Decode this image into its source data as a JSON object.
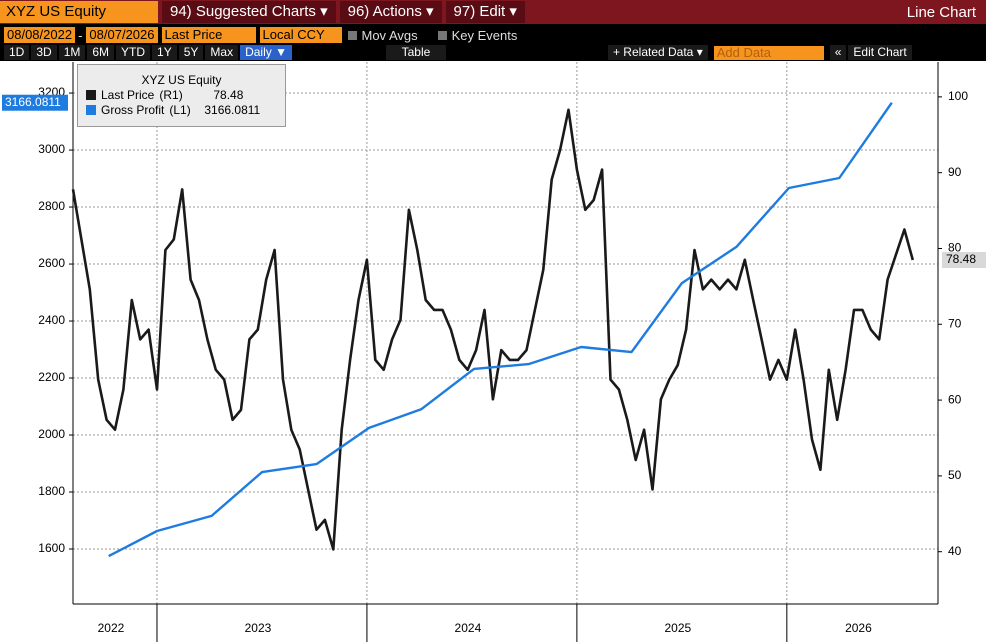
{
  "toolbar": {
    "security": "XYZ US Equity",
    "menus": [
      "94) Suggested Charts ▾",
      "96) Actions ▾",
      "97) Edit ▾"
    ],
    "view": "Line Chart",
    "start_date": "08/08/2022",
    "date_sep": "-",
    "end_date": "08/07/2026",
    "field": "Last Price",
    "currency": "Local CCY",
    "mov_avgs": "Mov Avgs",
    "key_events": "Key Events",
    "periods": [
      "1D",
      "3D",
      "1M",
      "6M",
      "YTD",
      "1Y",
      "5Y",
      "Max"
    ],
    "frequency": "Daily ▼",
    "table": "Table",
    "related": "+ Related Data ▾",
    "add_data": "Add Data",
    "collapse": "«",
    "edit_chart": "Edit Chart"
  },
  "chart_data": {
    "type": "line",
    "legend_title": "XYZ US Equity",
    "xlim": [
      2022.6,
      2026.72
    ],
    "xticks": [
      2022,
      2023,
      2024,
      2025,
      2026
    ],
    "ylim": [
      1407,
      3309
    ],
    "yticks": [
      1600,
      1800,
      2000,
      2200,
      2400,
      2600,
      2800,
      3000,
      3200
    ],
    "y2lim": [
      33.1,
      104.6
    ],
    "y2ticks": [
      40,
      50,
      60,
      70,
      80,
      90,
      100
    ],
    "grid": true,
    "series": [
      {
        "name": "Last Price",
        "tag": "(R1)",
        "color": "#1a1a1a",
        "axis": "y2",
        "x": [
          2022.6,
          2022.64,
          2022.68,
          2022.72,
          2022.76,
          2022.8,
          2022.84,
          2022.88,
          2022.92,
          2022.96,
          2023.0,
          2023.04,
          2023.08,
          2023.12,
          2023.16,
          2023.2,
          2023.24,
          2023.28,
          2023.32,
          2023.36,
          2023.4,
          2023.44,
          2023.48,
          2023.52,
          2023.56,
          2023.6,
          2023.64,
          2023.68,
          2023.72,
          2023.76,
          2023.8,
          2023.84,
          2023.88,
          2023.92,
          2023.96,
          2024.0,
          2024.04,
          2024.08,
          2024.12,
          2024.16,
          2024.2,
          2024.24,
          2024.28,
          2024.32,
          2024.36,
          2024.4,
          2024.44,
          2024.48,
          2024.52,
          2024.56,
          2024.6,
          2024.64,
          2024.68,
          2024.72,
          2024.76,
          2024.8,
          2024.84,
          2024.88,
          2024.92,
          2024.96,
          2025.0,
          2025.04,
          2025.08,
          2025.12,
          2025.16,
          2025.2,
          2025.24,
          2025.28,
          2025.32,
          2025.36,
          2025.4,
          2025.44,
          2025.48,
          2025.52,
          2025.56,
          2025.6,
          2025.64,
          2025.68,
          2025.72,
          2025.76,
          2025.8,
          2025.84,
          2025.88,
          2025.92,
          2025.96,
          2026.0,
          2026.04,
          2026.08,
          2026.12,
          2026.16,
          2026.2,
          2026.24,
          2026.28,
          2026.32,
          2026.36,
          2026.4,
          2026.44,
          2026.48,
          2026.52,
          2026.56,
          2026.6
        ],
        "values": [
          87.8,
          81.2,
          74.6,
          62.7,
          57.4,
          56.1,
          61.4,
          73.2,
          68.0,
          69.3,
          61.4,
          79.8,
          81.2,
          87.8,
          75.9,
          73.2,
          68.0,
          64.0,
          62.7,
          57.4,
          58.7,
          68.0,
          69.3,
          75.9,
          79.8,
          62.7,
          56.1,
          53.5,
          48.2,
          42.9,
          44.2,
          40.3,
          56.1,
          65.3,
          73.2,
          78.5,
          65.3,
          64.0,
          68.0,
          70.6,
          85.1,
          79.8,
          73.2,
          71.9,
          71.9,
          69.3,
          65.3,
          64.0,
          66.6,
          71.9,
          60.1,
          66.6,
          65.3,
          65.3,
          66.6,
          71.9,
          77.2,
          89.1,
          93.0,
          98.3,
          90.4,
          85.1,
          86.4,
          90.4,
          62.7,
          61.4,
          57.4,
          52.1,
          56.1,
          48.2,
          60.1,
          62.7,
          64.6,
          69.3,
          79.8,
          74.6,
          75.9,
          74.6,
          75.9,
          74.6,
          78.5,
          73.2,
          68.0,
          62.7,
          65.3,
          62.7,
          69.3,
          62.7,
          54.8,
          50.8,
          64.0,
          57.4,
          64.0,
          71.9,
          71.9,
          69.3,
          68.0,
          75.9,
          79.2,
          82.5,
          78.48
        ]
      },
      {
        "name": "Gross Profit",
        "tag": "(L1)",
        "color": "#1e7be0",
        "x": [
          2022.77,
          2023.0,
          2023.26,
          2023.5,
          2023.76,
          2024.01,
          2024.26,
          2024.51,
          2024.77,
          2025.02,
          2025.26,
          2025.5,
          2025.76,
          2026.01,
          2026.25,
          2026.5
        ],
        "values": [
          1575,
          1663,
          1716,
          1870,
          1898,
          2025,
          2091,
          2232,
          2249,
          2309,
          2291,
          2533,
          2660,
          2867,
          2902,
          3166.0811
        ]
      }
    ]
  }
}
